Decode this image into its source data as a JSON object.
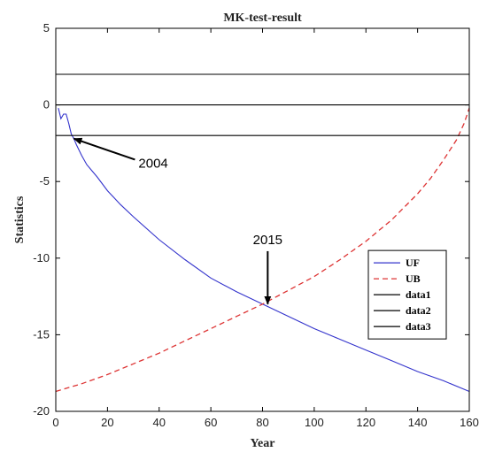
{
  "chart_data": {
    "type": "line",
    "title": "MK-test-result",
    "xlabel": "Year",
    "ylabel": "Statistics",
    "xlim": [
      0,
      160
    ],
    "ylim": [
      -20,
      5
    ],
    "xticks": [
      0,
      20,
      40,
      60,
      80,
      100,
      120,
      140,
      160
    ],
    "yticks": [
      5,
      0,
      -5,
      -10,
      -15,
      -20
    ],
    "grid": false,
    "legend_position": "bottom-right",
    "series": [
      {
        "name": "UF",
        "color": "#3333cc",
        "style": "solid",
        "x": [
          1,
          2,
          3,
          4,
          5,
          6,
          7,
          8,
          10,
          12,
          14,
          16,
          20,
          25,
          30,
          40,
          50,
          60,
          70,
          80,
          90,
          100,
          110,
          120,
          130,
          140,
          150,
          160
        ],
        "y": [
          -0.2,
          -0.9,
          -0.6,
          -0.6,
          -1.2,
          -1.9,
          -2.2,
          -2.6,
          -3.3,
          -3.9,
          -4.3,
          -4.7,
          -5.6,
          -6.5,
          -7.3,
          -8.8,
          -10.1,
          -11.3,
          -12.2,
          -13.0,
          -13.8,
          -14.6,
          -15.3,
          -16.0,
          -16.7,
          -17.4,
          -18.0,
          -18.7
        ]
      },
      {
        "name": "UB",
        "color": "#dd3333",
        "style": "dashed",
        "x": [
          0,
          10,
          20,
          30,
          40,
          50,
          60,
          70,
          80,
          90,
          100,
          110,
          120,
          130,
          140,
          145,
          150,
          155,
          158,
          160
        ],
        "y": [
          -18.7,
          -18.2,
          -17.6,
          -16.9,
          -16.2,
          -15.4,
          -14.6,
          -13.8,
          -13.0,
          -12.1,
          -11.2,
          -10.1,
          -8.9,
          -7.5,
          -5.8,
          -4.8,
          -3.6,
          -2.3,
          -1.2,
          -0.2
        ]
      },
      {
        "name": "data1",
        "color": "#000000",
        "style": "solid",
        "x": [
          0,
          160
        ],
        "y": [
          2,
          2
        ]
      },
      {
        "name": "data2",
        "color": "#000000",
        "style": "solid",
        "x": [
          0,
          160
        ],
        "y": [
          0,
          0
        ]
      },
      {
        "name": "data3",
        "color": "#000000",
        "style": "solid",
        "x": [
          0,
          160
        ],
        "y": [
          -2,
          -2
        ]
      }
    ],
    "annotations": [
      {
        "text": "2004",
        "point": [
          7,
          -2.2
        ],
        "label_at": [
          32,
          -3.8
        ]
      },
      {
        "text": "2015",
        "point": [
          82,
          -13.0
        ],
        "label_at": [
          82,
          -9.2
        ]
      }
    ]
  }
}
